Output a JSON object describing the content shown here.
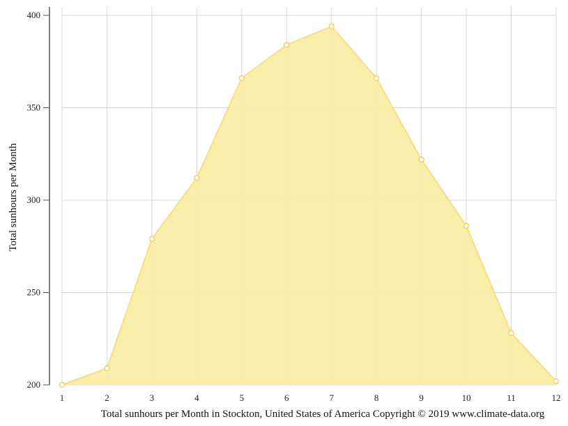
{
  "chart_data": {
    "type": "area",
    "title": "",
    "xlabel": "Total sunhours per Month in Stockton, United States of America Copyright © 2019 www.climate-data.org",
    "ylabel": "Total sunhours per Month",
    "categories": [
      "1",
      "2",
      "3",
      "4",
      "5",
      "6",
      "7",
      "8",
      "9",
      "10",
      "11",
      "12"
    ],
    "series": [
      {
        "name": "Total sunhours per Month",
        "values": [
          200,
          209,
          279,
          312,
          366,
          384,
          394,
          366,
          322,
          286,
          228,
          202
        ],
        "color": "#f7e27a"
      }
    ],
    "ylim": [
      200,
      400
    ],
    "yticks": [
      200,
      250,
      300,
      350,
      400
    ],
    "grid": true,
    "legend": "none"
  },
  "colors": {
    "fill": "#f9eca8",
    "line": "#f7df7a",
    "grid": "#d9d9d9",
    "axis": "#555555"
  }
}
